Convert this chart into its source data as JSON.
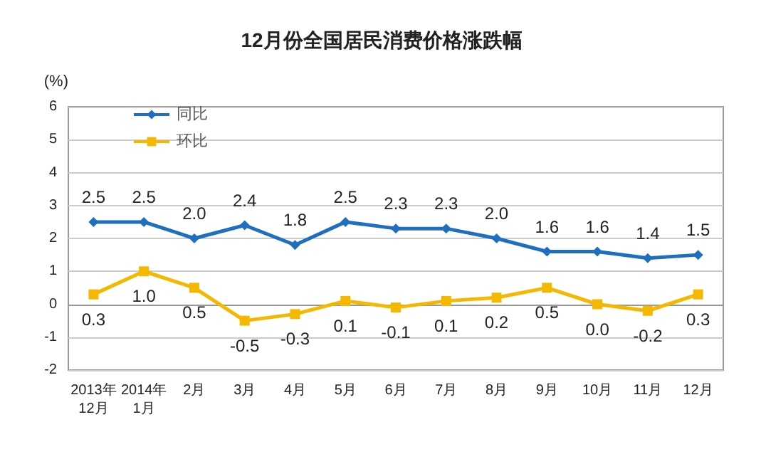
{
  "chart_data": {
    "type": "line",
    "title": "12月份全国居民消费价格涨跌幅",
    "ylabel": "(%)",
    "categories": [
      "2013年\n12月",
      "2014年\n1月",
      "2月",
      "3月",
      "4月",
      "5月",
      "6月",
      "7月",
      "8月",
      "9月",
      "10月",
      "11月",
      "12月"
    ],
    "series": [
      {
        "name": "同比",
        "color": "#1f6fc0",
        "marker": "diamond",
        "values": [
          2.5,
          2.5,
          2.0,
          2.4,
          1.8,
          2.5,
          2.3,
          2.3,
          2.0,
          1.6,
          1.6,
          1.4,
          1.5
        ],
        "value_labels": [
          "2.5",
          "2.5",
          "2.0",
          "2.4",
          "1.8",
          "2.5",
          "2.3",
          "2.3",
          "2.0",
          "1.6",
          "1.6",
          "1.4",
          "1.5"
        ]
      },
      {
        "name": "环比",
        "color": "#f5b800",
        "marker": "square",
        "values": [
          0.3,
          1.0,
          0.5,
          -0.5,
          -0.3,
          0.1,
          -0.1,
          0.1,
          0.2,
          0.5,
          0.0,
          -0.2,
          0.3
        ],
        "value_labels": [
          "0.3",
          "1.0",
          "0.5",
          "-0.5",
          "-0.3",
          "0.1",
          "-0.1",
          "0.1",
          "0.2",
          "0.5",
          "0.0",
          "-0.2",
          "0.3"
        ]
      }
    ],
    "ylim": [
      -2,
      6
    ],
    "yticks": [
      -2,
      -1,
      0,
      1,
      2,
      3,
      4,
      5,
      6
    ],
    "grid": "y",
    "legend": "top left"
  }
}
